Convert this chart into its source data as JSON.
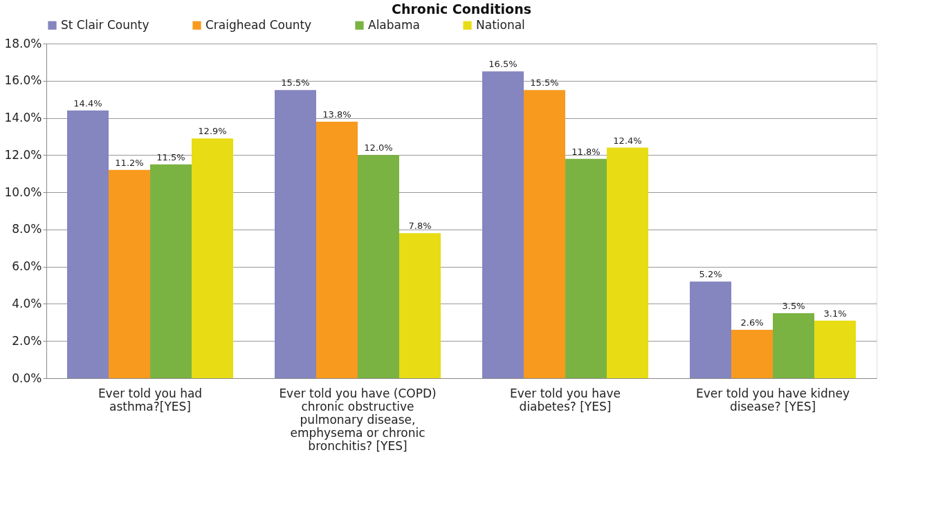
{
  "chart_data": {
    "type": "bar",
    "title": "Chronic Conditions",
    "categories": [
      "Ever told you had asthma?[YES]",
      "Ever told you have (COPD) chronic obstructive pulmonary disease, emphysema or chronic bronchitis? [YES]",
      "Ever told you have diabetes? [YES]",
      "Ever told you have kidney disease? [YES]"
    ],
    "series": [
      {
        "name": "St Clair County",
        "color": "#8585c0",
        "values": [
          14.4,
          15.5,
          16.5,
          5.2
        ],
        "value_labels": [
          "14.4%",
          "15.5%",
          "16.5%",
          "5.2%"
        ]
      },
      {
        "name": "Craighead County",
        "color": "#f79a1e",
        "values": [
          11.2,
          13.8,
          15.5,
          2.6
        ],
        "value_labels": [
          "11.2%",
          "13.8%",
          "15.5%",
          "2.6%"
        ]
      },
      {
        "name": "Alabama",
        "color": "#7bb342",
        "values": [
          11.5,
          12.0,
          11.8,
          3.5
        ],
        "value_labels": [
          "11.5%",
          "12.0%",
          "11.8%",
          "3.5%"
        ]
      },
      {
        "name": "National",
        "color": "#e8dc14",
        "values": [
          12.9,
          7.8,
          12.4,
          3.1
        ],
        "value_labels": [
          "12.9%",
          "7.8%",
          "12.4%",
          "3.1%"
        ]
      }
    ],
    "ylim": [
      0,
      18
    ],
    "yticks": [
      {
        "value": 0,
        "label": "0.0%"
      },
      {
        "value": 2,
        "label": "2.0%"
      },
      {
        "value": 4,
        "label": "4.0%"
      },
      {
        "value": 6,
        "label": "6.0%"
      },
      {
        "value": 8,
        "label": "8.0%"
      },
      {
        "value": 10,
        "label": "10.0%"
      },
      {
        "value": 12,
        "label": "12.0%"
      },
      {
        "value": 14,
        "label": "14.0%"
      },
      {
        "value": 16,
        "label": "16.0%"
      },
      {
        "value": 18,
        "label": "18.0%"
      }
    ],
    "grid": "y",
    "legend": "top"
  }
}
